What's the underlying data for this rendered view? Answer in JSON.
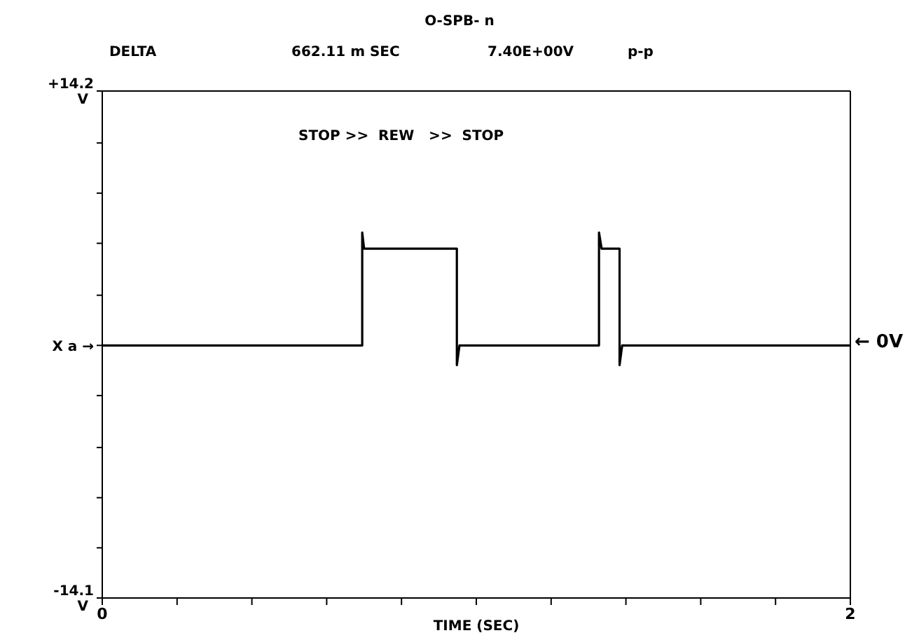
{
  "chart_data": {
    "type": "line",
    "title": "O-SPB- n",
    "annotations": [
      "DELTA",
      "662.11 m SEC",
      "7.40E+00V",
      "p-p",
      "STOP >>  REW   >>  STOP",
      "← 0V"
    ],
    "xlabel": "TIME (SEC)",
    "x": [
      0,
      0.695,
      0.695,
      0.7,
      0.948,
      0.948,
      0.955,
      1.328,
      1.328,
      1.335,
      1.383,
      1.383,
      1.39,
      2
    ],
    "series": [
      {
        "color": "#000000",
        "values": [
          0,
          0,
          6.3,
          5.4,
          5.4,
          -1.1,
          0,
          0,
          6.3,
          5.4,
          5.4,
          -1.1,
          0,
          0
        ]
      }
    ],
    "xlim": [
      0,
      2
    ],
    "xticks": [
      0,
      {
        "value": 0.2,
        "label": null
      },
      {
        "value": 0.4,
        "label": null
      },
      {
        "value": 0.6,
        "label": null
      },
      {
        "value": 0.8,
        "label": null
      },
      {
        "value": 1,
        "label": null
      },
      {
        "value": 1.2,
        "label": null
      },
      {
        "value": 1.4,
        "label": null
      },
      {
        "value": 1.6,
        "label": null
      },
      {
        "value": 1.8,
        "label": null
      },
      2
    ],
    "ylim": [
      -14.1,
      14.2
    ],
    "yticks": [
      {
        "value": -14.1,
        "label": "-14.1 V"
      },
      {
        "value": -11.3,
        "label": null
      },
      {
        "value": -8.5,
        "label": null
      },
      {
        "value": -5.7,
        "label": null
      },
      {
        "value": -2.8,
        "label": null
      },
      {
        "value": 0,
        "label": "X a →"
      },
      {
        "value": 2.8,
        "label": null
      },
      {
        "value": 5.7,
        "label": null
      },
      {
        "value": 8.5,
        "label": null
      },
      {
        "value": 11.3,
        "label": null
      },
      {
        "value": 14.2,
        "label": "+14.2 V"
      }
    ],
    "marker": "none",
    "line_style": "solid"
  }
}
